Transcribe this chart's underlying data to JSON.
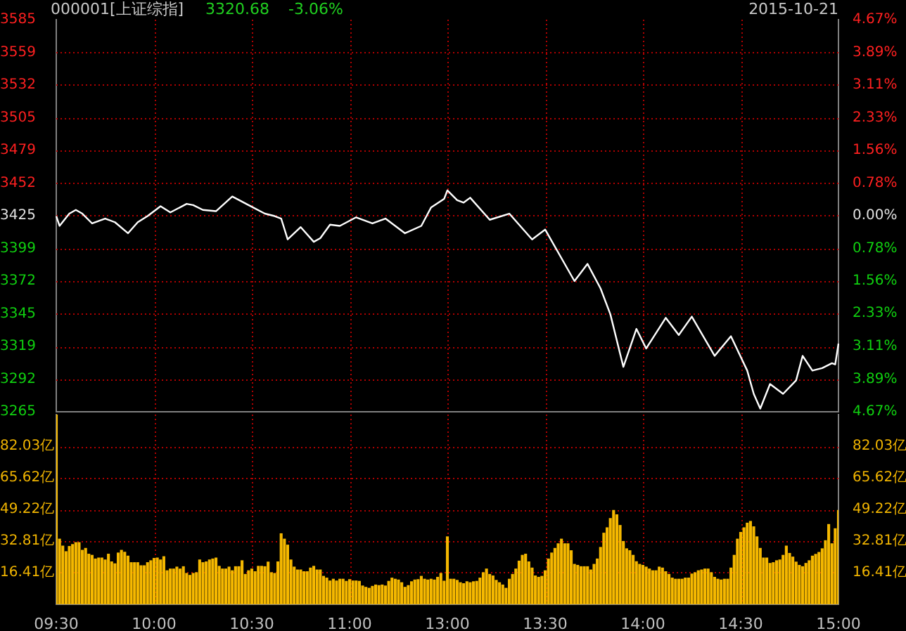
{
  "chart_data": [
    {
      "type": "line",
      "title": "000001[上证综指]",
      "annotations": [
        "3320.68",
        "-3.06%",
        "2015-10-21"
      ],
      "categories": [
        null,
        null,
        null,
        null,
        null,
        null,
        null,
        null,
        null,
        null,
        null,
        null,
        null,
        null,
        null,
        null,
        null,
        null,
        null,
        null,
        null,
        null,
        null,
        null,
        null,
        null,
        null,
        null,
        null,
        null,
        null,
        null,
        null,
        null,
        null,
        null,
        null,
        null,
        null,
        null,
        null,
        null,
        null,
        null,
        null,
        null,
        null,
        null,
        null,
        null,
        null,
        null,
        null,
        null,
        null,
        null,
        null,
        null,
        null,
        null,
        null,
        null,
        null,
        null,
        null,
        null,
        null,
        null,
        null,
        null,
        null,
        null,
        null,
        null,
        null,
        null,
        null,
        null,
        null,
        null,
        null,
        null,
        null,
        null,
        null,
        null,
        null,
        null,
        null,
        null,
        null,
        null,
        null,
        null,
        null,
        null,
        null,
        null,
        null,
        null,
        null,
        null,
        null,
        null,
        null,
        null,
        null,
        null,
        null,
        null,
        null,
        null,
        null,
        null,
        null,
        null,
        null,
        null,
        null,
        null,
        null,
        null,
        null,
        null,
        null,
        null,
        null,
        null,
        null,
        null,
        null,
        null,
        null,
        null,
        null,
        null,
        null,
        null,
        null,
        null,
        null,
        null,
        null,
        null,
        null,
        null,
        null,
        null,
        null,
        null,
        null,
        null,
        null,
        null,
        null,
        null,
        null,
        null,
        null,
        null,
        null,
        null,
        null,
        null,
        null,
        null,
        null,
        null,
        null,
        null,
        null,
        null,
        null,
        null,
        null,
        null,
        null,
        null,
        null,
        null,
        null,
        null,
        null,
        null,
        null,
        null,
        null,
        null,
        null,
        null,
        null,
        null,
        null,
        null,
        null,
        null,
        null,
        null,
        null,
        null,
        null,
        null,
        null,
        null,
        null,
        null,
        null,
        null,
        null,
        null,
        null,
        null,
        null,
        null,
        null,
        null,
        null,
        null,
        null,
        null,
        null,
        null,
        null,
        null,
        null,
        null,
        null,
        null,
        null,
        null,
        null,
        null,
        null,
        null,
        null,
        null,
        null,
        null,
        null,
        null,
        null
      ],
      "series": [
        {
          "color": "#ffffff",
          "values": [
            3425,
            3417,
            null,
            null,
            3427,
            null,
            3430,
            null,
            3427,
            null,
            null,
            3419,
            null,
            null,
            null,
            3423,
            null,
            null,
            3420,
            null,
            null,
            null,
            3411,
            null,
            null,
            3420,
            null,
            null,
            3425,
            null,
            null,
            null,
            3433,
            null,
            null,
            3428,
            null,
            null,
            null,
            null,
            3435,
            null,
            3434,
            null,
            null,
            3430,
            null,
            null,
            null,
            3429,
            null,
            null,
            null,
            null,
            3441,
            null,
            null,
            null,
            null,
            3434,
            null,
            null,
            null,
            null,
            3427,
            null,
            null,
            3425,
            null,
            3423,
            null,
            3406,
            null,
            null,
            null,
            3416,
            null,
            null,
            null,
            3404,
            null,
            3407,
            null,
            null,
            3418,
            null,
            null,
            3417,
            null,
            null,
            null,
            null,
            3424,
            null,
            null,
            null,
            null,
            3419,
            null,
            null,
            null,
            3423,
            null,
            null,
            null,
            null,
            null,
            3411,
            null,
            null,
            null,
            null,
            3417,
            null,
            null,
            3432,
            null,
            null,
            null,
            3439,
            3446,
            null,
            null,
            3438,
            null,
            3436,
            null,
            3440,
            null,
            null,
            null,
            null,
            null,
            3422,
            null,
            null,
            null,
            null,
            null,
            3427,
            null,
            null,
            null,
            null,
            null,
            null,
            3406,
            null,
            null,
            null,
            3414,
            null,
            null,
            null,
            null,
            null,
            null,
            null,
            null,
            3372,
            null,
            null,
            null,
            3386,
            null,
            null,
            null,
            3366,
            null,
            null,
            3345,
            null,
            null,
            null,
            3302,
            null,
            null,
            null,
            3333,
            null,
            null,
            3317,
            null,
            null,
            null,
            null,
            null,
            3342,
            null,
            null,
            null,
            3328,
            null,
            null,
            null,
            3343,
            null,
            null,
            null,
            null,
            null,
            null,
            3311,
            null,
            null,
            null,
            null,
            3327,
            null,
            null,
            null,
            null,
            3299,
            null,
            3280,
            null,
            3268,
            null,
            null,
            3288,
            null,
            null,
            null,
            3280,
            null,
            null,
            null,
            3291,
            null,
            3311,
            null,
            null,
            3299,
            null,
            null,
            3301,
            null,
            null,
            3305,
            3304,
            3321
          ]
        }
      ],
      "ylim": [
        3265.4,
        3585.2
      ],
      "yticks": [
        {
          "value": 3265.4,
          "label": "3265"
        },
        {
          "value": 3292.1,
          "label": "3292"
        },
        {
          "value": 3318.7,
          "label": "3319"
        },
        {
          "value": 3345.4,
          "label": "3345"
        },
        {
          "value": 3372.0,
          "label": "3372"
        },
        {
          "value": 3398.7,
          "label": "3399"
        },
        {
          "value": 3425.3,
          "label": "3425"
        },
        {
          "value": 3452.0,
          "label": "3452"
        },
        {
          "value": 3478.6,
          "label": "3479"
        },
        {
          "value": 3505.3,
          "label": "3505"
        },
        {
          "value": 3531.9,
          "label": "3532"
        },
        {
          "value": 3558.6,
          "label": "3559"
        },
        {
          "value": 3585.2,
          "label": "3585"
        }
      ],
      "y2lim": [
        -4.67,
        4.67
      ],
      "y2ticks": [
        {
          "value": -4.67,
          "label": "4.67%"
        },
        {
          "value": -3.89,
          "label": "3.89%"
        },
        {
          "value": -3.11,
          "label": "3.11%"
        },
        {
          "value": -2.33,
          "label": "2.33%"
        },
        {
          "value": -1.56,
          "label": "1.56%"
        },
        {
          "value": -0.78,
          "label": "0.78%"
        },
        {
          "value": 0,
          "label": "0.00%"
        },
        {
          "value": 0.78,
          "label": "0.78%"
        },
        {
          "value": 1.56,
          "label": "1.56%"
        },
        {
          "value": 2.33,
          "label": "2.33%"
        },
        {
          "value": 3.11,
          "label": "3.11%"
        },
        {
          "value": 3.89,
          "label": "3.89%"
        },
        {
          "value": 4.67,
          "label": "4.67%"
        }
      ],
      "tick_labels": "y",
      "grid": true,
      "legend": false
    },
    {
      "type": "bar",
      "color": "#f5b800",
      "categories": [
        "09:30",
        null,
        null,
        null,
        null,
        null,
        null,
        null,
        null,
        null,
        null,
        null,
        null,
        null,
        null,
        null,
        null,
        null,
        null,
        null,
        null,
        null,
        null,
        null,
        null,
        null,
        null,
        null,
        null,
        null,
        "10:00",
        null,
        null,
        null,
        null,
        null,
        null,
        null,
        null,
        null,
        null,
        null,
        null,
        null,
        null,
        null,
        null,
        null,
        null,
        null,
        null,
        null,
        null,
        null,
        null,
        null,
        null,
        null,
        null,
        null,
        "10:30",
        null,
        null,
        null,
        null,
        null,
        null,
        null,
        null,
        null,
        null,
        null,
        null,
        null,
        null,
        null,
        null,
        null,
        null,
        null,
        null,
        null,
        null,
        null,
        null,
        null,
        null,
        null,
        null,
        null,
        "11:00",
        null,
        null,
        null,
        null,
        null,
        null,
        null,
        null,
        null,
        null,
        null,
        null,
        null,
        null,
        null,
        null,
        null,
        null,
        null,
        null,
        null,
        null,
        null,
        null,
        null,
        null,
        null,
        null,
        null,
        "13:00",
        null,
        null,
        null,
        null,
        null,
        null,
        null,
        null,
        null,
        null,
        null,
        null,
        null,
        null,
        null,
        null,
        null,
        null,
        null,
        null,
        null,
        null,
        null,
        null,
        null,
        null,
        null,
        null,
        null,
        "13:30",
        null,
        null,
        null,
        null,
        null,
        null,
        null,
        null,
        null,
        null,
        null,
        null,
        null,
        null,
        null,
        null,
        null,
        null,
        null,
        null,
        null,
        null,
        null,
        null,
        null,
        null,
        null,
        null,
        null,
        "14:00",
        null,
        null,
        null,
        null,
        null,
        null,
        null,
        null,
        null,
        null,
        null,
        null,
        null,
        null,
        null,
        null,
        null,
        null,
        null,
        null,
        null,
        null,
        null,
        null,
        null,
        null,
        null,
        null,
        null,
        "14:30",
        null,
        null,
        null,
        null,
        null,
        null,
        null,
        null,
        null,
        null,
        null,
        null,
        null,
        null,
        null,
        null,
        null,
        null,
        null,
        null,
        null,
        null,
        null,
        null,
        null,
        null,
        null,
        null,
        null,
        "15:00"
      ],
      "values": [
        98.4,
        33.8,
        30.2,
        27.3,
        30,
        31,
        32,
        32,
        28,
        29,
        26,
        25.4,
        23.5,
        24,
        24,
        23,
        26,
        22,
        21,
        26.6,
        28,
        27,
        25,
        21.6,
        21.6,
        21.6,
        20,
        20,
        21.6,
        22.6,
        23.8,
        24,
        23,
        24.7,
        17.4,
        18.3,
        18.3,
        19.3,
        18.3,
        19.5,
        16,
        15,
        16,
        16.4,
        23,
        21.6,
        22,
        23,
        23.5,
        24,
        19.7,
        18.3,
        18.3,
        19.3,
        17.4,
        19.5,
        19.5,
        22.6,
        15.5,
        17.4,
        18.3,
        16.9,
        19.7,
        19.7,
        19.5,
        21.9,
        16.4,
        16,
        22,
        36.6,
        33.8,
        30.7,
        23,
        19.3,
        17.8,
        17.8,
        16.9,
        16.9,
        18.8,
        19.7,
        17.8,
        17.8,
        14.5,
        13.6,
        12.1,
        13,
        12.1,
        13,
        13,
        11.9,
        12.8,
        12.1,
        12.1,
        11.9,
        9.5,
        8.8,
        8.3,
        9.3,
        10,
        9.7,
        10,
        9.5,
        11.9,
        13.6,
        13,
        12.6,
        11.2,
        8.8,
        9.7,
        11.7,
        12.6,
        12.8,
        14.5,
        13,
        12.6,
        13,
        12.6,
        14,
        16,
        12,
        35,
        13,
        13,
        12.4,
        11.2,
        10.7,
        11.7,
        11.2,
        11.7,
        11.9,
        13.6,
        16.4,
        18.3,
        15.5,
        14.7,
        12.4,
        11.2,
        10,
        8.3,
        13,
        15.5,
        18.3,
        22.4,
        25.4,
        26,
        22,
        18.8,
        14.7,
        14,
        14.5,
        17.4,
        23.5,
        26.6,
        29,
        31.4,
        33.8,
        31.4,
        31.4,
        27.8,
        20.7,
        20.2,
        19.5,
        19.5,
        19.5,
        17.8,
        20.7,
        23.5,
        29.5,
        36.9,
        39.7,
        44.5,
        48.7,
        46.4,
        40.9,
        32.6,
        28.8,
        27.8,
        25.4,
        22.1,
        20.7,
        20.2,
        19.3,
        18.3,
        17.4,
        17.4,
        19.3,
        18.8,
        16.9,
        15.5,
        13.6,
        13,
        13,
        13,
        13.6,
        13.6,
        15.7,
        16.4,
        17.4,
        17.8,
        18.3,
        18.3,
        16.4,
        14,
        13,
        12.6,
        13,
        13,
        18.8,
        25.4,
        33.8,
        37.3,
        39.7,
        42.1,
        43,
        40.2,
        35,
        29,
        24,
        24,
        21.2,
        21.6,
        22.6,
        23,
        25.4,
        30.2,
        26.4,
        24.5,
        21.9,
        20.2,
        19.5,
        21.2,
        22.6,
        25,
        25.9,
        26.9,
        28.8,
        33,
        41.4,
        31.4,
        39.2,
        48.7
      ],
      "ylim": [
        0,
        98.44
      ],
      "yticks": [
        {
          "value": 16.41,
          "label": "16.41亿"
        },
        {
          "value": 32.81,
          "label": "32.81亿"
        },
        {
          "value": 49.22,
          "label": "49.22亿"
        },
        {
          "value": 65.62,
          "label": "65.62亿"
        },
        {
          "value": 82.03,
          "label": "82.03亿"
        }
      ],
      "y2lim": [
        0,
        98.44
      ],
      "y2ticks": [
        {
          "value": 16.41,
          "label": "16.41亿"
        },
        {
          "value": 32.81,
          "label": "32.81亿"
        },
        {
          "value": 49.22,
          "label": "49.22亿"
        },
        {
          "value": 65.62,
          "label": "65.62亿"
        },
        {
          "value": 82.03,
          "label": "82.03亿"
        }
      ],
      "grid": true,
      "legend": false
    }
  ]
}
